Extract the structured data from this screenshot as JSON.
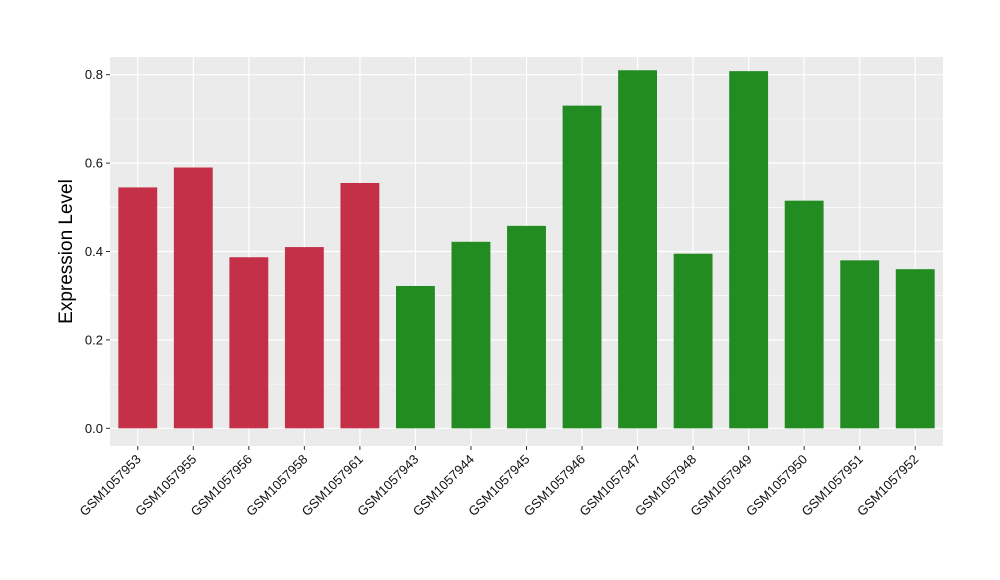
{
  "chart_data": {
    "type": "bar",
    "xlabel": "",
    "ylabel": "Expression Level",
    "ylim": [
      -0.04,
      0.84
    ],
    "yticks": [
      0.0,
      0.2,
      0.4,
      0.6,
      0.8
    ],
    "ytick_labels": [
      "0.0",
      "0.2",
      "0.4",
      "0.6",
      "0.8"
    ],
    "categories": [
      "GSM1057953",
      "GSM1057955",
      "GSM1057956",
      "GSM1057958",
      "GSM1057961",
      "GSM1057943",
      "GSM1057944",
      "GSM1057945",
      "GSM1057946",
      "GSM1057947",
      "GSM1057948",
      "GSM1057949",
      "GSM1057950",
      "GSM1057951",
      "GSM1057952"
    ],
    "values": [
      0.545,
      0.59,
      0.387,
      0.41,
      0.555,
      0.322,
      0.422,
      0.458,
      0.73,
      0.81,
      0.395,
      0.808,
      0.515,
      0.38,
      0.36
    ],
    "bar_colors": [
      "#c33048",
      "#c33048",
      "#c33048",
      "#c33048",
      "#c33048",
      "#228b22",
      "#228b22",
      "#228b22",
      "#228b22",
      "#228b22",
      "#228b22",
      "#228b22",
      "#228b22",
      "#228b22",
      "#228b22"
    ],
    "panel_background": "#ebebeb",
    "grid_color": "#ffffff",
    "grid": true,
    "legend": "none"
  }
}
